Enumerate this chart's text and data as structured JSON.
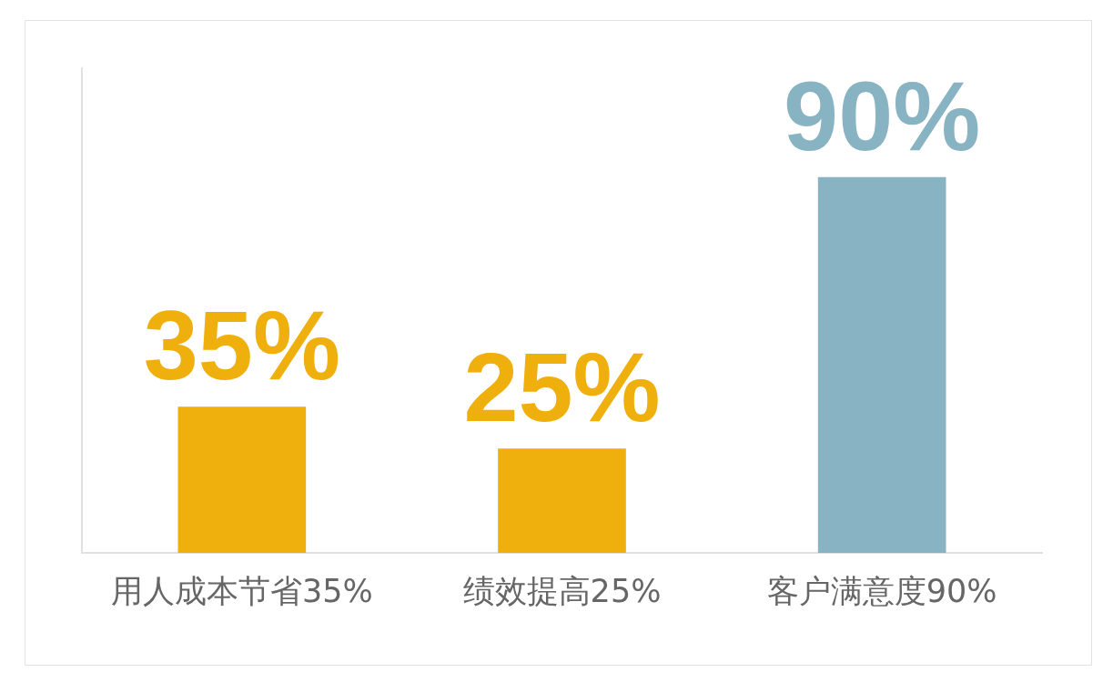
{
  "chart_data": {
    "type": "bar",
    "categories": [
      "用人成本节省35%",
      "绩效提高25%",
      "客户满意度90%"
    ],
    "values": [
      35,
      25,
      90
    ],
    "colors": [
      "#efb00e",
      "#efb00e",
      "#88b3c3"
    ],
    "value_labels": [
      "35%",
      "25%",
      "90%"
    ],
    "grid": false,
    "legend": false
  }
}
